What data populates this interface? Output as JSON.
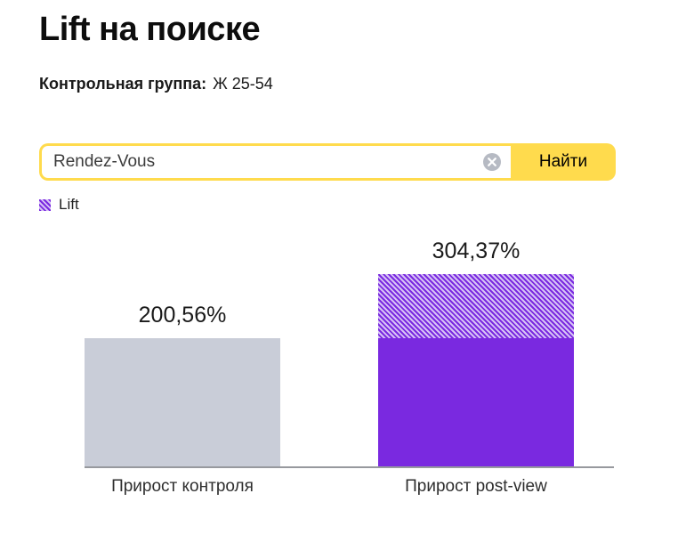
{
  "page": {
    "title": "Lift на поиске"
  },
  "control_group": {
    "label": "Контрольная группа:",
    "value": "Ж 25-54"
  },
  "search": {
    "value": "Rendez-Vous",
    "button_label": "Найти",
    "clear_icon": "clear-circle-icon"
  },
  "legend": {
    "items": [
      {
        "label": "Lift",
        "swatch": "purple-hatch"
      }
    ]
  },
  "colors": {
    "accent_yellow": "#ffdb4d",
    "bar_gray": "#c9cdd8",
    "bar_purple": "#7a29e0",
    "hatch_light": "#d7c3f6",
    "axis_gray": "#97999e"
  },
  "chart_data": {
    "type": "bar",
    "title": "Lift на поиске",
    "categories": [
      "Прирост контроля",
      "Прирост post-view"
    ],
    "values": [
      200.56,
      304.37
    ],
    "value_labels": [
      "200,56%",
      "304,37%"
    ],
    "solid_values": [
      200.56,
      200.56
    ],
    "hatched_series_name": "Lift",
    "hatched_values": [
      0,
      103.81
    ],
    "ylim": [
      0,
      304.37
    ],
    "grid": false,
    "legend_position": "top-left"
  }
}
